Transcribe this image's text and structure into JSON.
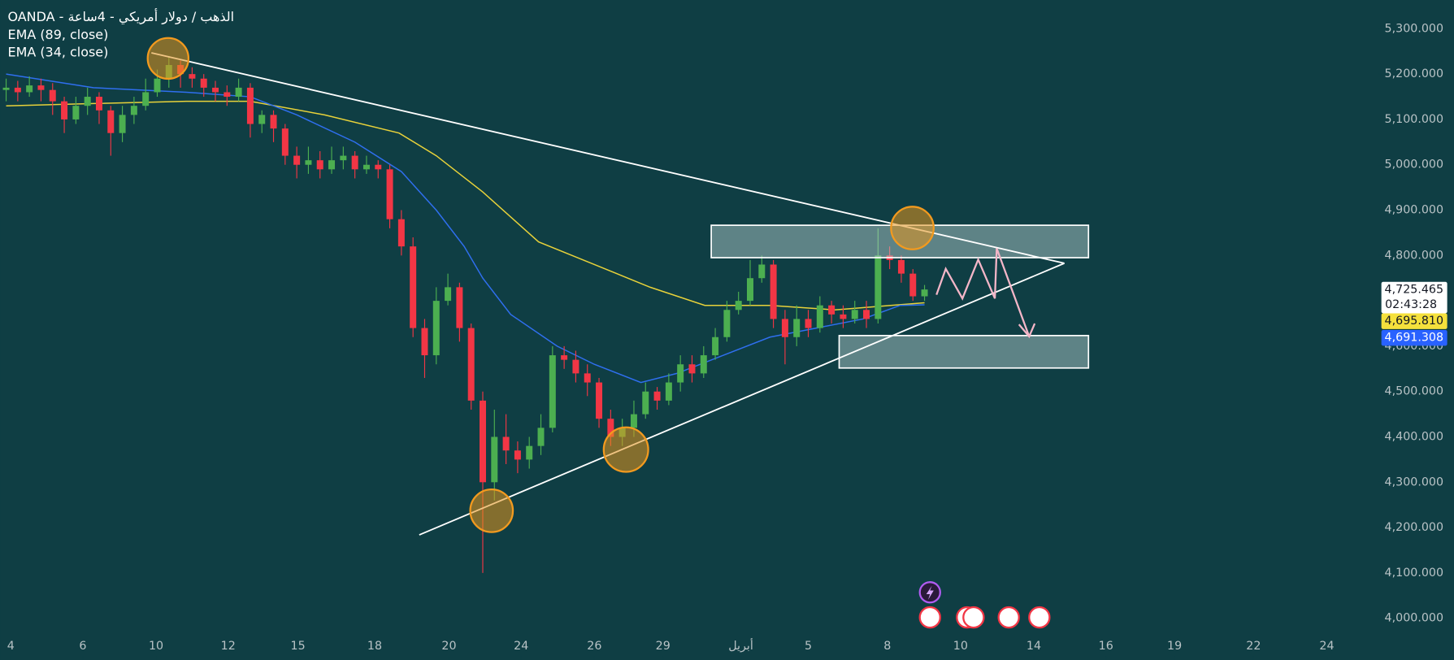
{
  "chart_data": {
    "type": "candlestick",
    "title": "OANDA - الذهب / دولار أمريكي - 4ساعة",
    "up_color": "#4caf50",
    "down_color": "#f23645",
    "xlim": [
      -0.5,
      117.5
    ],
    "xticks": [
      {
        "value": 0.4,
        "label": "4"
      },
      {
        "value": 6.6,
        "label": "6"
      },
      {
        "value": 12.9,
        "label": "10"
      },
      {
        "value": 19.1,
        "label": "12"
      },
      {
        "value": 25.1,
        "label": "15"
      },
      {
        "value": 31.7,
        "label": "18"
      },
      {
        "value": 38.1,
        "label": "20"
      },
      {
        "value": 44.3,
        "label": "24"
      },
      {
        "value": 50.6,
        "label": "26"
      },
      {
        "value": 56.5,
        "label": "29"
      },
      {
        "value": 63.2,
        "label": "أبريل"
      },
      {
        "value": 69.0,
        "label": "5"
      },
      {
        "value": 75.8,
        "label": "8"
      },
      {
        "value": 82.1,
        "label": "10"
      },
      {
        "value": 88.4,
        "label": "14"
      },
      {
        "value": 94.6,
        "label": "16"
      },
      {
        "value": 100.5,
        "label": "19"
      },
      {
        "value": 107.3,
        "label": "22"
      },
      {
        "value": 113.6,
        "label": "24"
      }
    ],
    "ylim": [
      3930,
      5330
    ],
    "yticks": [
      {
        "value": 5300,
        "label": "5,300.000"
      },
      {
        "value": 5200,
        "label": "5,200.000"
      },
      {
        "value": 5100,
        "label": "5,100.000"
      },
      {
        "value": 5000,
        "label": "5,000.000"
      },
      {
        "value": 4900,
        "label": "4,900.000"
      },
      {
        "value": 4800,
        "label": "4,800.000"
      },
      {
        "value": 4700,
        "label": "4,700.000"
      },
      {
        "value": 4600,
        "label": "4,600.000"
      },
      {
        "value": 4500,
        "label": "4,500.000"
      },
      {
        "value": 4400,
        "label": "4,400.000"
      },
      {
        "value": 4300,
        "label": "4,300.000"
      },
      {
        "value": 4200,
        "label": "4,200.000"
      },
      {
        "value": 4100,
        "label": "4,100.000"
      },
      {
        "value": 4000,
        "label": "4,000.000"
      }
    ],
    "open": [
      5165,
      5170,
      5160,
      5175,
      5165,
      5140,
      5100,
      5130,
      5150,
      5120,
      5070,
      5110,
      5130,
      5160,
      5190,
      5220,
      5200,
      5190,
      5170,
      5160,
      5150,
      5170,
      5090,
      5110,
      5080,
      5020,
      5000,
      5010,
      4990,
      5010,
      5020,
      4990,
      5000,
      4990,
      4880,
      4820,
      4640,
      4580,
      4700,
      4730,
      4640,
      4480,
      4300,
      4400,
      4370,
      4350,
      4380,
      4420,
      4580,
      4570,
      4540,
      4520,
      4440,
      4400,
      4420,
      4450,
      4500,
      4480,
      4520,
      4560,
      4540,
      4580,
      4620,
      4680,
      4700,
      4750,
      4780,
      4660,
      4620,
      4660,
      4640,
      4690,
      4670,
      4660,
      4680,
      4660,
      4800,
      4790,
      4760,
      4710
    ],
    "high": [
      5190,
      5185,
      5195,
      5190,
      5180,
      5150,
      5150,
      5170,
      5160,
      5130,
      5130,
      5150,
      5190,
      5210,
      5240,
      5230,
      5215,
      5200,
      5185,
      5175,
      5190,
      5180,
      5120,
      5120,
      5090,
      5040,
      5040,
      5030,
      5040,
      5040,
      5030,
      5020,
      5010,
      5000,
      4900,
      4840,
      4660,
      4730,
      4760,
      4740,
      4650,
      4500,
      4460,
      4450,
      4390,
      4400,
      4450,
      4600,
      4600,
      4590,
      4560,
      4530,
      4460,
      4440,
      4480,
      4520,
      4510,
      4540,
      4580,
      4580,
      4600,
      4640,
      4700,
      4720,
      4790,
      4800,
      4790,
      4680,
      4690,
      4680,
      4710,
      4700,
      4690,
      4700,
      4700,
      4860,
      4820,
      4800,
      4770,
      4735
    ],
    "low": [
      5140,
      5140,
      5150,
      5140,
      5110,
      5070,
      5090,
      5110,
      5090,
      5020,
      5050,
      5090,
      5120,
      5150,
      5170,
      5170,
      5170,
      5150,
      5140,
      5130,
      5140,
      5060,
      5070,
      5050,
      5000,
      4970,
      4980,
      4970,
      4980,
      4990,
      4970,
      4980,
      4970,
      4860,
      4800,
      4620,
      4530,
      4560,
      4690,
      4610,
      4460,
      4100,
      4260,
      4340,
      4320,
      4330,
      4360,
      4410,
      4550,
      4520,
      4490,
      4420,
      4380,
      4380,
      4400,
      4440,
      4460,
      4470,
      4500,
      4520,
      4530,
      4570,
      4610,
      4670,
      4690,
      4740,
      4640,
      4560,
      4600,
      4620,
      4630,
      4650,
      4640,
      4650,
      4640,
      4650,
      4770,
      4740,
      4700,
      4700
    ],
    "close": [
      5170,
      5160,
      5175,
      5165,
      5140,
      5100,
      5130,
      5150,
      5120,
      5070,
      5110,
      5130,
      5160,
      5190,
      5220,
      5200,
      5190,
      5170,
      5160,
      5150,
      5170,
      5090,
      5110,
      5080,
      5020,
      5000,
      5010,
      4990,
      5010,
      5020,
      4990,
      5000,
      4990,
      4880,
      4820,
      4640,
      4580,
      4700,
      4730,
      4640,
      4480,
      4300,
      4400,
      4370,
      4350,
      4380,
      4420,
      4580,
      4570,
      4540,
      4520,
      4440,
      4400,
      4420,
      4450,
      4500,
      4480,
      4520,
      4560,
      4540,
      4580,
      4620,
      4680,
      4700,
      4750,
      4780,
      4660,
      4620,
      4660,
      4640,
      4690,
      4670,
      4660,
      4680,
      4660,
      4800,
      4790,
      4760,
      4710,
      4725
    ],
    "series": [
      {
        "name": "EMA (89, close)",
        "color": "#e8d23a",
        "x": [
          0,
          7.5,
          15.5,
          21,
          27.4,
          33.8,
          37,
          41,
          45.8,
          50.6,
          55.4,
          60.1,
          65.7,
          71.3,
          76.1,
          79
        ],
        "values": [
          5130,
          5135,
          5140,
          5140,
          5110,
          5070,
          5020,
          4940,
          4830,
          4780,
          4730,
          4690,
          4690,
          4680,
          4690,
          4695.81
        ]
      },
      {
        "name": "EMA (34, close)",
        "color": "#2f6fef",
        "x": [
          0,
          7.5,
          15.5,
          21,
          25,
          30,
          34,
          37,
          39.4,
          41,
          43.4,
          47.4,
          50.6,
          54.6,
          57.7,
          61.7,
          65.7,
          69.7,
          73.7,
          76.9,
          79
        ],
        "values": [
          5200,
          5170,
          5160,
          5150,
          5110,
          5050,
          4985,
          4900,
          4820,
          4750,
          4670,
          4600,
          4560,
          4520,
          4540,
          4580,
          4620,
          4640,
          4660,
          4690,
          4691.308
        ]
      }
    ],
    "price_tags": [
      {
        "value": 4725.465,
        "label": "4,725.465",
        "color": "#ffffff"
      },
      {
        "value": 4695.81,
        "label": "4,695.810",
        "color": "#f5e13c"
      },
      {
        "value": 4691.308,
        "label": "4,691.308",
        "color": "#2962ff"
      }
    ],
    "countdown": "02:43:28"
  }
}
